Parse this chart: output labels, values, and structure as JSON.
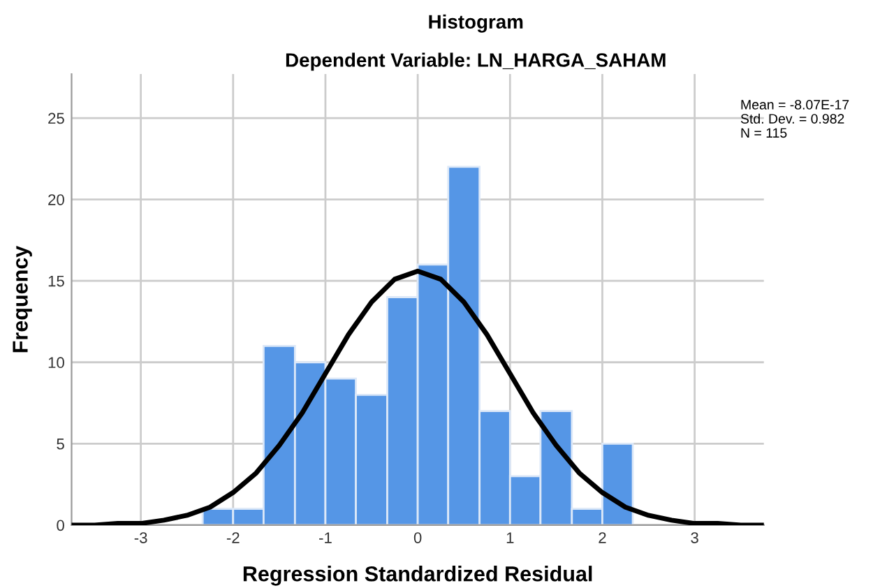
{
  "chart_data": {
    "type": "histogram",
    "title": "Histogram",
    "subtitle": "Dependent Variable: LN_HARGA_SAHAM",
    "xlabel": "Regression Standardized Residual",
    "ylabel": "Frequency",
    "bins": [
      -2.33,
      -2.0,
      -1.67,
      -1.33,
      -1.0,
      -0.67,
      -0.33,
      0,
      0.33,
      0.67,
      1.0,
      1.33,
      1.67,
      2.0,
      2.33
    ],
    "series": [
      {
        "color": "#5596e6",
        "values": [
          1,
          1,
          11,
          10,
          9,
          8,
          14,
          16,
          22,
          7,
          3,
          7,
          1,
          5
        ]
      },
      {
        "type": "line",
        "color": "#000000",
        "x": [
          -3.75,
          -3.5,
          -3.25,
          -3.0,
          -2.75,
          -2.5,
          -2.25,
          -2.0,
          -1.75,
          -1.5,
          -1.25,
          -1.0,
          -0.75,
          -0.5,
          -0.25,
          0,
          0.25,
          0.5,
          0.75,
          1.0,
          1.25,
          1.5,
          1.75,
          2.0,
          2.25,
          2.5,
          2.75,
          3.0,
          3.25,
          3.5,
          3.75
        ],
        "values": [
          0.0,
          0.0,
          0.1,
          0.1,
          0.3,
          0.6,
          1.1,
          2.0,
          3.2,
          4.9,
          6.9,
          9.3,
          11.7,
          13.7,
          15.1,
          15.6,
          15.1,
          13.7,
          11.7,
          9.3,
          6.9,
          4.9,
          3.2,
          2.0,
          1.1,
          0.6,
          0.3,
          0.1,
          0.1,
          0.0,
          0.0
        ]
      }
    ],
    "xlim": [
      -3.75,
      3.75
    ],
    "ylim": [
      0,
      27.7
    ],
    "xticks": [
      -3,
      -2,
      -1,
      0,
      1,
      2,
      3
    ],
    "yticks": [
      0,
      5,
      10,
      15,
      20,
      25
    ],
    "grid": true,
    "marker": "none",
    "line_style": "solid",
    "annotations": [
      "Mean = -8.07E-17",
      "Std. Dev. = 0.982",
      "N = 115"
    ]
  }
}
